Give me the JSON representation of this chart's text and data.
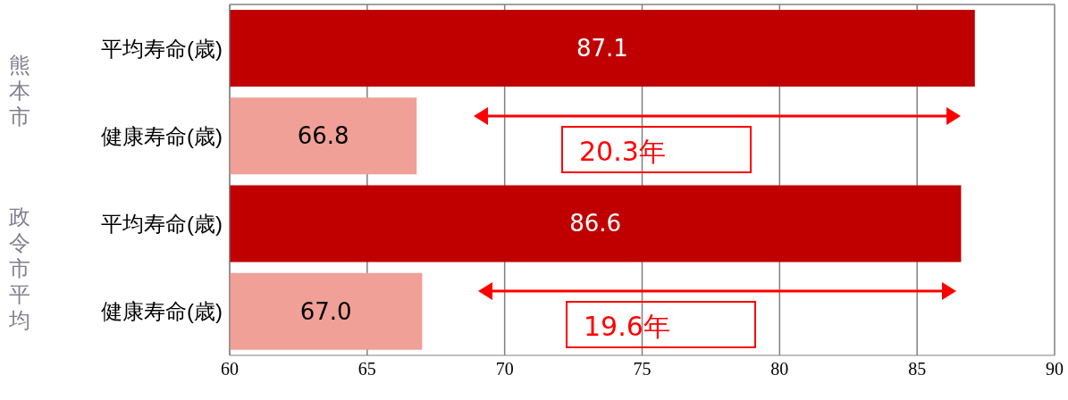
{
  "chart_data": {
    "type": "bar",
    "orientation": "horizontal",
    "categories": [
      "平均寿命(歳)",
      "健康寿命(歳)",
      "平均寿命(歳)",
      "健康寿命(歳)"
    ],
    "values": [
      87.1,
      66.8,
      86.6,
      67.0
    ],
    "colors": [
      "#c00000",
      "#f0a097",
      "#c00000",
      "#f0a097"
    ],
    "value_labels": [
      "87.1",
      "66.8",
      "86.6",
      "67.0"
    ],
    "xlim": [
      60,
      90
    ],
    "xticks": [
      60,
      65,
      70,
      75,
      80,
      85,
      90
    ],
    "grid": "x",
    "annotations": [
      "熊本市",
      "政令市平均",
      "20.3年",
      "19.6年"
    ]
  }
}
